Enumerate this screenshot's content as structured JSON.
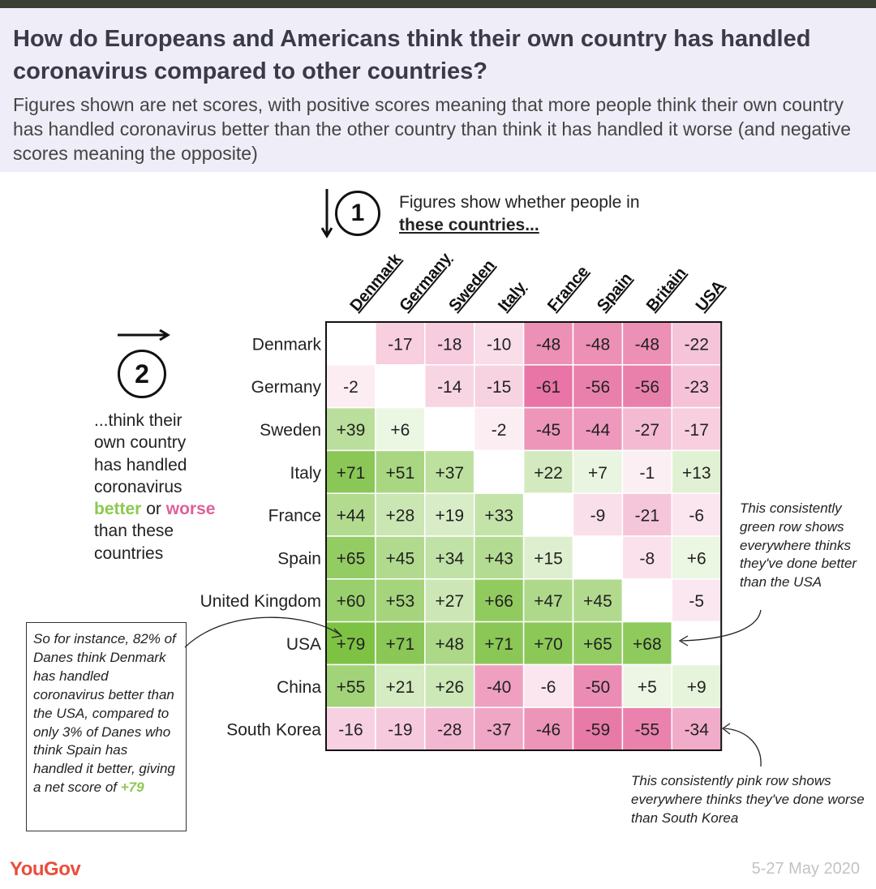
{
  "header": {
    "title": "How do Europeans and Americans think their own country has handled coronavirus compared to other countries?",
    "subtitle": "Figures shown are net scores, with positive scores meaning that more people think their own country has handled coronavirus better than the other country than think it has handled it worse (and negative scores meaning the opposite)"
  },
  "step1": {
    "number": "1",
    "text_line1": "Figures show whether people in",
    "text_line2": "these countries..."
  },
  "step2": {
    "number": "2",
    "text_before": "...think their own country has handled coronavirus",
    "better": "better",
    "or": "or",
    "worse": "worse",
    "text_after": "than these countries"
  },
  "chart_data": {
    "type": "heatmap",
    "title": "How do Europeans and Americans think their own country has handled coronavirus compared to other countries?",
    "columns": [
      "Denmark",
      "Germany",
      "Sweden",
      "Italy",
      "France",
      "Spain",
      "Britain",
      "USA"
    ],
    "rows": [
      "Denmark",
      "Germany",
      "Sweden",
      "Italy",
      "France",
      "Spain",
      "United Kingdom",
      "USA",
      "China",
      "South Korea"
    ],
    "values": [
      [
        null,
        -17,
        -18,
        -10,
        -48,
        -48,
        -48,
        -22
      ],
      [
        -2,
        null,
        -14,
        -15,
        -61,
        -56,
        -56,
        -23
      ],
      [
        39,
        6,
        null,
        -2,
        -45,
        -44,
        -27,
        -17
      ],
      [
        71,
        51,
        37,
        null,
        22,
        7,
        -1,
        13
      ],
      [
        44,
        28,
        19,
        33,
        null,
        -9,
        -21,
        -6
      ],
      [
        65,
        45,
        34,
        43,
        15,
        null,
        -8,
        6
      ],
      [
        60,
        53,
        27,
        66,
        47,
        45,
        null,
        -5
      ],
      [
        79,
        71,
        48,
        71,
        70,
        65,
        68,
        null
      ],
      [
        55,
        21,
        26,
        -40,
        -6,
        -50,
        5,
        9
      ],
      [
        -16,
        -19,
        -28,
        -37,
        -46,
        -59,
        -55,
        -34
      ]
    ],
    "positive_color": "#7cc142",
    "negative_color": "#e14f8c",
    "value_range": [
      -80,
      80
    ]
  },
  "notes": {
    "green_row": "This consistently green row shows everywhere thinks they've done better than the USA",
    "pink_row": "This consistently pink row shows everywhere thinks they've done worse than South Korea",
    "example_text": "So for instance, 82% of Danes think Denmark has handled coronavirus better than the USA, compared to only 3% of Danes who think Spain has handled it better, giving a net score of",
    "example_value": "+79"
  },
  "footer": {
    "logo": "YouGov",
    "date": "5-27 May 2020"
  }
}
